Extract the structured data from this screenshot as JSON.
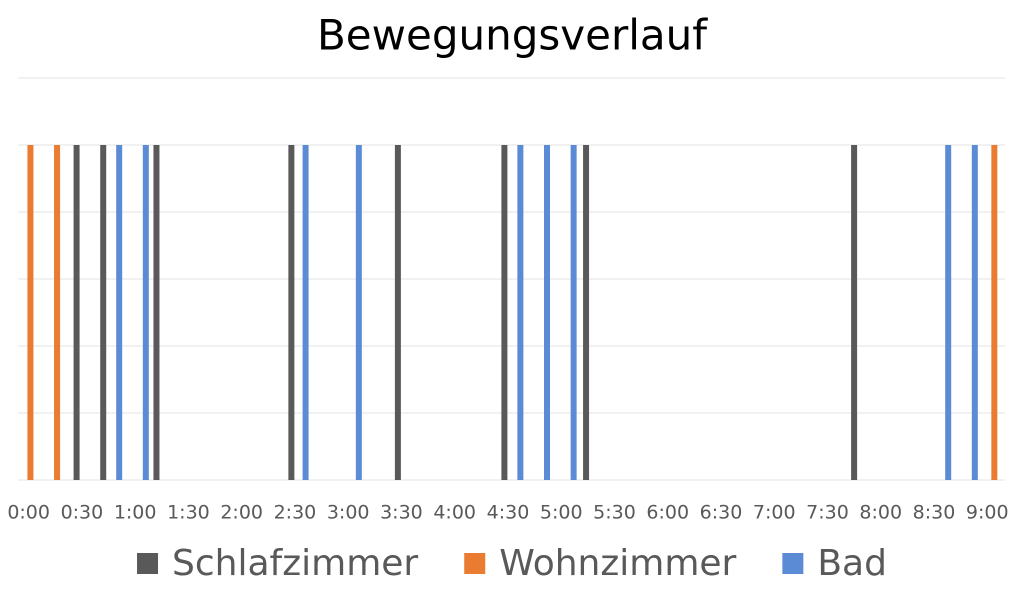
{
  "chart_data": {
    "type": "event",
    "title": "Bewegungsverlauf",
    "xlim": [
      -6,
      550
    ],
    "ylim": [
      0,
      1.2
    ],
    "yticks": [
      0,
      0.2,
      0.4,
      0.6,
      0.8,
      1,
      1.2
    ],
    "grid": true,
    "xticks": [
      {
        "value": 0,
        "label": "0:00"
      },
      {
        "value": 30,
        "label": "0:30"
      },
      {
        "value": 60,
        "label": "1:00"
      },
      {
        "value": 90,
        "label": "1:30"
      },
      {
        "value": 120,
        "label": "2:00"
      },
      {
        "value": 150,
        "label": "2:30"
      },
      {
        "value": 180,
        "label": "3:00"
      },
      {
        "value": 210,
        "label": "3:30"
      },
      {
        "value": 240,
        "label": "4:00"
      },
      {
        "value": 270,
        "label": "4:30"
      },
      {
        "value": 300,
        "label": "5:00"
      },
      {
        "value": 330,
        "label": "5:30"
      },
      {
        "value": 360,
        "label": "6:00"
      },
      {
        "value": 390,
        "label": "6:30"
      },
      {
        "value": 420,
        "label": "7:00"
      },
      {
        "value": 450,
        "label": "7:30"
      },
      {
        "value": 480,
        "label": "8:00"
      },
      {
        "value": 510,
        "label": "8:30"
      },
      {
        "value": 540,
        "label": "9:00"
      }
    ],
    "legend": "bottom",
    "series": [
      {
        "name": "Schlafzimmer",
        "color": "#595959",
        "x": [
          27,
          42,
          72,
          148,
          208,
          268,
          314,
          465
        ],
        "values": [
          1,
          1,
          1,
          1,
          1,
          1,
          1,
          1
        ]
      },
      {
        "name": "Wohnzimmer",
        "color": "#e97c30",
        "x": [
          1,
          16,
          544
        ],
        "values": [
          1,
          1,
          1
        ]
      },
      {
        "name": "Bad",
        "color": "#5b8bd5",
        "x": [
          51,
          66,
          156,
          186,
          277,
          292,
          307,
          518,
          533
        ],
        "values": [
          1,
          1,
          1,
          1,
          1,
          1,
          1,
          1,
          1
        ]
      }
    ]
  }
}
